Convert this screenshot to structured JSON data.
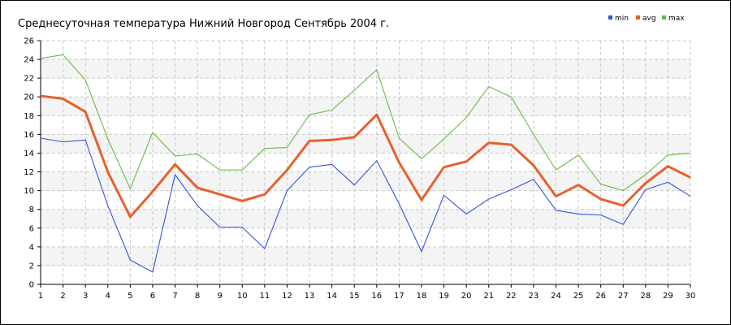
{
  "chart_data": {
    "type": "line",
    "title": "Среднесуточная температура Нижний Новгород  Сентябрь 2004 г.",
    "xlabel": "",
    "ylabel": "",
    "x": [
      1,
      2,
      3,
      4,
      5,
      6,
      7,
      8,
      9,
      10,
      11,
      12,
      13,
      14,
      15,
      16,
      17,
      18,
      19,
      20,
      21,
      22,
      23,
      24,
      25,
      26,
      27,
      28,
      29,
      30
    ],
    "xlim": [
      1,
      30
    ],
    "ylim": [
      0,
      26
    ],
    "yticks": [
      0,
      2,
      4,
      6,
      8,
      10,
      12,
      14,
      16,
      18,
      20,
      22,
      24,
      26
    ],
    "grid": true,
    "legend_position": "top-right",
    "series": [
      {
        "name": "min",
        "color": "#3355dd",
        "values": [
          15.6,
          15.2,
          15.4,
          8.4,
          2.6,
          1.3,
          11.7,
          8.4,
          6.1,
          6.1,
          3.8,
          10.0,
          12.5,
          12.8,
          10.6,
          13.2,
          8.6,
          3.5,
          9.5,
          7.5,
          9.1,
          10.1,
          11.2,
          7.9,
          7.5,
          7.4,
          6.4,
          10.1,
          10.9,
          9.4
        ]
      },
      {
        "name": "avg",
        "color": "#e8602c",
        "values": [
          20.1,
          19.8,
          18.4,
          12.0,
          7.2,
          9.9,
          12.8,
          10.3,
          9.6,
          8.9,
          9.6,
          12.2,
          15.3,
          15.4,
          15.7,
          18.1,
          13.0,
          9.0,
          12.5,
          13.1,
          15.1,
          14.9,
          12.7,
          9.4,
          10.6,
          9.1,
          8.4,
          10.8,
          12.6,
          11.4
        ]
      },
      {
        "name": "max",
        "color": "#66bb44",
        "values": [
          24.1,
          24.5,
          21.8,
          15.5,
          10.2,
          16.2,
          13.7,
          13.9,
          12.2,
          12.2,
          14.5,
          14.6,
          18.1,
          18.6,
          20.7,
          22.9,
          15.6,
          13.4,
          15.5,
          17.8,
          21.1,
          20.0,
          16.0,
          12.2,
          13.8,
          10.7,
          10.0,
          11.7,
          13.8,
          14.0
        ]
      }
    ]
  }
}
